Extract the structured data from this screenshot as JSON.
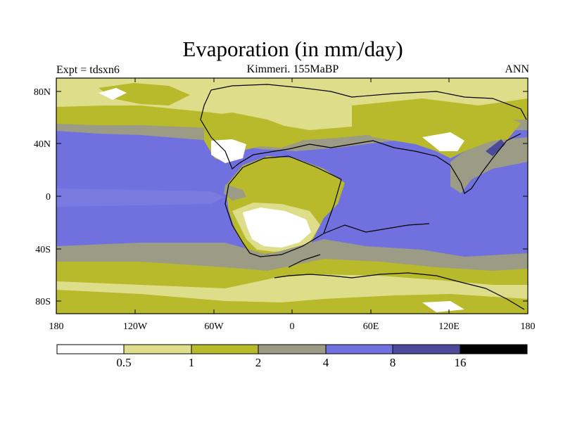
{
  "map": {
    "title": "Evaporation (in mm/day)",
    "experiment_label": "Expt = tdsxn6",
    "subtitle": "Kimmeri. 155MaBP",
    "season": "ANN",
    "y_ticks": [
      "80N",
      "40N",
      "0",
      "40S",
      "80S"
    ],
    "x_ticks": [
      "180",
      "120W",
      "60W",
      "0",
      "60E",
      "120E",
      "180"
    ]
  },
  "colorbar": {
    "colors": [
      "#ffffff",
      "#dede8a",
      "#b9b92c",
      "#9b9b86",
      "#7070de",
      "#4b4b9a",
      "#000000"
    ],
    "labels": [
      "0.5",
      "1",
      "2",
      "4",
      "8",
      "16"
    ]
  }
}
